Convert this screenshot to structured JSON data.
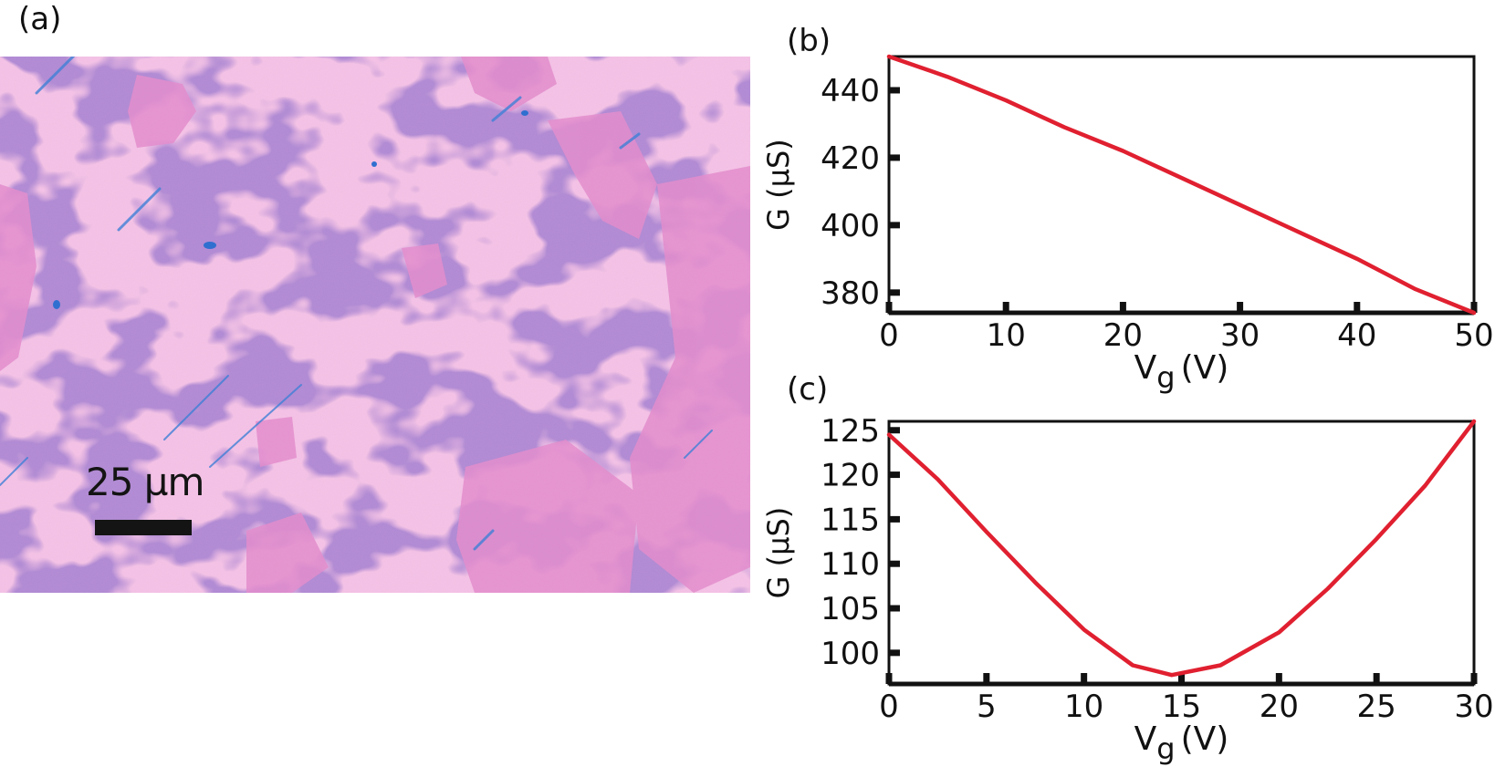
{
  "panels": {
    "a": "(a)",
    "b": "(b)",
    "c": "(c)"
  },
  "micrograph": {
    "scale_bar_label": "25 µm",
    "colors": {
      "base": "#b189d2",
      "pink": "#e88ac8",
      "blue": "#3f7fd6",
      "scale_bar": "#141414"
    }
  },
  "chart_data": [
    {
      "panel": "(b)",
      "type": "line",
      "xlabel": "V",
      "xlabel_sub": "g",
      "xlabel_unit": "(V)",
      "ylabel": "G (µS)",
      "xlim": [
        0,
        50
      ],
      "ylim": [
        374,
        450
      ],
      "xticks": [
        0,
        10,
        20,
        30,
        40,
        50
      ],
      "yticks": [
        380,
        400,
        420,
        440
      ],
      "line_color": "#e02030",
      "series": [
        {
          "x": [
            0,
            5,
            10,
            15,
            20,
            25,
            30,
            35,
            40,
            45,
            50
          ],
          "values": [
            450,
            444,
            437,
            429,
            422,
            414,
            406,
            398,
            390,
            381,
            374
          ]
        }
      ]
    },
    {
      "panel": "(c)",
      "type": "line",
      "xlabel": "V",
      "xlabel_sub": "g",
      "xlabel_unit": "(V)",
      "ylabel": "G (µS)",
      "xlim": [
        0,
        30
      ],
      "ylim": [
        96.5,
        126
      ],
      "xticks": [
        0,
        5,
        10,
        15,
        20,
        25,
        30
      ],
      "yticks": [
        100,
        105,
        110,
        115,
        120,
        125
      ],
      "line_color": "#e02030",
      "series": [
        {
          "x": [
            0,
            2.5,
            5,
            7.5,
            10,
            12.5,
            14.5,
            17,
            20,
            22.5,
            25,
            27.5,
            30
          ],
          "values": [
            124.5,
            119.5,
            113.6,
            107.9,
            102.6,
            98.6,
            97.5,
            98.6,
            102.3,
            107.2,
            112.8,
            118.8,
            126
          ]
        }
      ]
    }
  ]
}
